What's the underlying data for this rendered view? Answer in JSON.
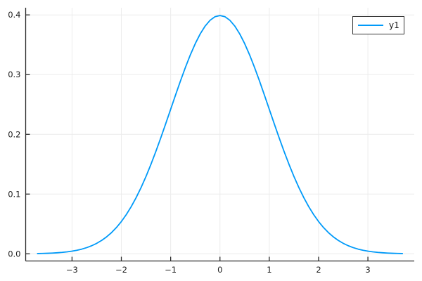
{
  "chart_data": {
    "type": "line",
    "title": "",
    "xlabel": "",
    "ylabel": "",
    "xlim": [
      -3.94,
      3.94
    ],
    "ylim": [
      -0.012,
      0.412
    ],
    "xticks": [
      -3,
      -2,
      -1,
      0,
      1,
      2,
      3
    ],
    "xtick_labels": [
      "−3",
      "−2",
      "−1",
      "0",
      "1",
      "2",
      "3"
    ],
    "yticks": [
      0.0,
      0.1,
      0.2,
      0.3,
      0.4
    ],
    "ytick_labels": [
      "0.0",
      "0.1",
      "0.2",
      "0.3",
      "0.4"
    ],
    "grid": true,
    "legend_position": "top-right",
    "legend": {
      "entries": [
        {
          "label": "y1",
          "color": "#009AF9"
        }
      ]
    },
    "style": {
      "line_color": "#009AF9",
      "grid_color": "#ECECEC",
      "axis_color": "#2A2A2A",
      "tick_label_color": "#1A1A1A",
      "background": "#FFFFFF"
    },
    "series": [
      {
        "name": "y1",
        "color": "#009AF9",
        "x": [
          -3.7,
          -3.6,
          -3.5,
          -3.4,
          -3.3,
          -3.2,
          -3.1,
          -3.0,
          -2.9,
          -2.8,
          -2.7,
          -2.6,
          -2.5,
          -2.4,
          -2.3,
          -2.2,
          -2.1,
          -2.0,
          -1.9,
          -1.8,
          -1.7,
          -1.6,
          -1.5,
          -1.4,
          -1.3,
          -1.2,
          -1.1,
          -1.0,
          -0.9,
          -0.8,
          -0.7,
          -0.6,
          -0.5,
          -0.4,
          -0.3,
          -0.2,
          -0.1,
          0.0,
          0.1,
          0.2,
          0.3,
          0.4,
          0.5,
          0.6,
          0.7,
          0.8,
          0.9,
          1.0,
          1.1,
          1.2,
          1.3,
          1.4,
          1.5,
          1.6,
          1.7,
          1.8,
          1.9,
          2.0,
          2.1,
          2.2,
          2.3,
          2.4,
          2.5,
          2.6,
          2.7,
          2.8,
          2.9,
          3.0,
          3.1,
          3.2,
          3.3,
          3.4,
          3.5,
          3.6,
          3.7
        ],
        "y": [
          0.000425,
          0.000612,
          0.000873,
          0.001232,
          0.001723,
          0.002384,
          0.003267,
          0.004432,
          0.005953,
          0.007915,
          0.010421,
          0.013583,
          0.017528,
          0.022395,
          0.028327,
          0.035475,
          0.043984,
          0.053991,
          0.065616,
          0.07895,
          0.094049,
          0.110921,
          0.129518,
          0.149727,
          0.171369,
          0.194186,
          0.217852,
          0.241971,
          0.266085,
          0.289692,
          0.312254,
          0.333225,
          0.352065,
          0.36827,
          0.381388,
          0.391043,
          0.396953,
          0.398942,
          0.396953,
          0.391043,
          0.381388,
          0.36827,
          0.352065,
          0.333225,
          0.312254,
          0.289692,
          0.266085,
          0.241971,
          0.217852,
          0.194186,
          0.171369,
          0.149727,
          0.129518,
          0.110921,
          0.094049,
          0.07895,
          0.065616,
          0.053991,
          0.043984,
          0.035475,
          0.028327,
          0.022395,
          0.017528,
          0.013583,
          0.010421,
          0.007915,
          0.005953,
          0.004432,
          0.003267,
          0.002384,
          0.001723,
          0.001232,
          0.000873,
          0.000612,
          0.000425
        ]
      }
    ]
  }
}
